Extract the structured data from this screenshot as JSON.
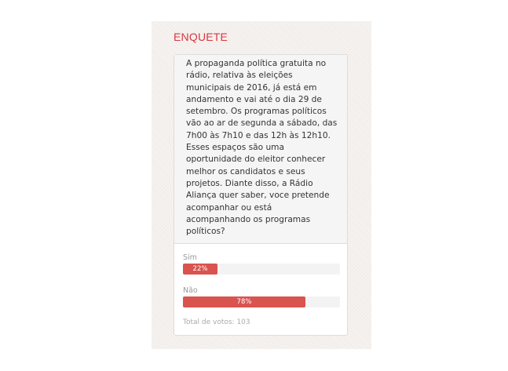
{
  "poll": {
    "title": "ENQUETE",
    "question_lines": [
      "A propaganda política gratuita no",
      "rádio, relativa às eleições",
      "municipais de 2016, já está em",
      "andamento e vai até o dia 29 de",
      "setembro. Os programas políticos",
      "vão ao ar de segunda a sábado, das",
      "7h00 às 7h10 e das 12h às 12h10.",
      "Esses espaços são uma",
      "oportunidade do eleitor conhecer",
      "melhor os candidatos e seus",
      "projetos. Diante disso, a Rádio",
      "Aliança quer saber, voce pretende",
      "acompanhar ou está",
      "acompanhando os programas",
      "políticos?"
    ],
    "options": [
      {
        "label": "Sim",
        "percent_label": "22%",
        "percent": 22
      },
      {
        "label": "Não",
        "percent_label": "78%",
        "percent": 78
      }
    ],
    "total": "Total de votos: 103",
    "colors": {
      "accent": "#d9363e",
      "bar": "#d9534f"
    }
  }
}
